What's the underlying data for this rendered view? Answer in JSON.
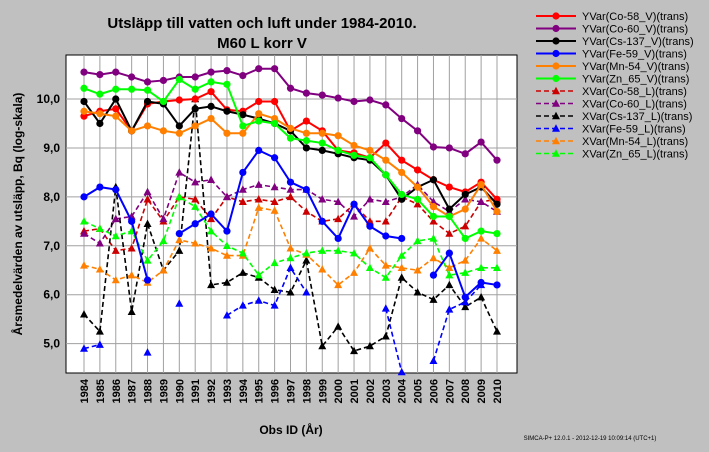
{
  "chart_data": {
    "type": "line",
    "title": "Utsläpp till vatten och luft under 1984-2010.",
    "subtitle": "M60  L korr V",
    "xlabel": "Obs ID (År)",
    "ylabel": "Årsmedelvärden av utsläpp, Bq (log-skala)",
    "ylim": [
      4.4,
      10.9
    ],
    "yticks": [
      "5,0",
      "6,0",
      "7,0",
      "8,0",
      "9,0",
      "10,0"
    ],
    "ytick_values": [
      5,
      6,
      7,
      8,
      9,
      10
    ],
    "x": [
      "1984",
      "1985",
      "1986",
      "1987",
      "1988",
      "1989",
      "1990",
      "1991",
      "1992",
      "1993",
      "1994",
      "1995",
      "1996",
      "1997",
      "1998",
      "1999",
      "2000",
      "2001",
      "2002",
      "2003",
      "2004",
      "2005",
      "2006",
      "2007",
      "2008",
      "2009",
      "2010"
    ],
    "grid": true,
    "legend_position": "right",
    "series": [
      {
        "name": "YVar(Co-58_V)(trans)",
        "color": "#ff0000",
        "style": "solid",
        "marker": "circle",
        "values": [
          9.65,
          9.75,
          9.8,
          9.35,
          9.9,
          9.95,
          9.98,
          10.0,
          10.15,
          9.78,
          9.75,
          9.95,
          9.95,
          9.35,
          9.55,
          9.35,
          8.95,
          8.9,
          8.8,
          9.1,
          8.75,
          8.55,
          8.35,
          8.2,
          8.1,
          8.3,
          7.95
        ]
      },
      {
        "name": "YVar(Co-60_V)(trans)",
        "color": "#800080",
        "style": "solid",
        "marker": "circle",
        "values": [
          10.55,
          10.5,
          10.55,
          10.45,
          10.35,
          10.38,
          10.45,
          10.45,
          10.55,
          10.58,
          10.48,
          10.62,
          10.62,
          10.22,
          10.12,
          10.08,
          10.02,
          9.95,
          9.98,
          9.88,
          9.6,
          9.35,
          9.02,
          9.0,
          8.88,
          9.12,
          8.75
        ]
      },
      {
        "name": "YVar(Cs-137_V)(trans)",
        "color": "#000000",
        "style": "solid",
        "marker": "circle",
        "values": [
          9.95,
          9.5,
          10.0,
          9.35,
          9.95,
          9.9,
          9.45,
          9.8,
          9.85,
          9.75,
          9.68,
          9.6,
          9.5,
          9.35,
          9.0,
          8.95,
          8.88,
          8.8,
          8.75,
          8.45,
          7.95,
          8.2,
          8.35,
          7.75,
          8.05,
          8.2,
          7.85
        ]
      },
      {
        "name": "YVar(Fe-59_V)(trans)",
        "color": "#0000ff",
        "style": "solid",
        "marker": "circle",
        "values": [
          8.0,
          8.2,
          8.15,
          7.5,
          6.3,
          null,
          7.25,
          7.45,
          7.65,
          7.3,
          8.5,
          8.95,
          8.8,
          8.3,
          8.15,
          7.5,
          7.15,
          7.85,
          7.4,
          7.2,
          7.15,
          null,
          6.4,
          6.85,
          5.95,
          6.25,
          6.2
        ]
      },
      {
        "name": "YVar(Mn-54_V)(trans)",
        "color": "#ff8000",
        "style": "solid",
        "marker": "circle",
        "values": [
          9.75,
          9.7,
          9.65,
          9.35,
          9.45,
          9.35,
          9.3,
          9.45,
          9.6,
          9.3,
          9.3,
          9.7,
          9.6,
          9.4,
          9.3,
          9.3,
          9.25,
          9.05,
          8.95,
          8.75,
          8.5,
          8.2,
          7.8,
          7.6,
          7.75,
          8.25,
          7.7
        ]
      },
      {
        "name": "YVar(Zn_65_V)(trans)",
        "color": "#00ff00",
        "style": "solid",
        "marker": "circle",
        "values": [
          10.22,
          10.1,
          10.2,
          10.2,
          10.18,
          9.95,
          10.4,
          10.2,
          10.35,
          10.3,
          9.45,
          9.55,
          9.5,
          9.2,
          9.15,
          9.1,
          8.95,
          8.85,
          8.8,
          8.45,
          8.05,
          7.95,
          7.6,
          7.6,
          7.15,
          7.3,
          7.25
        ]
      },
      {
        "name": "XVar(Co-58_L)(trans)",
        "color": "#cc0000",
        "style": "dashed",
        "marker": "triangle",
        "values": [
          7.3,
          7.35,
          6.9,
          6.95,
          7.95,
          7.5,
          8.0,
          7.95,
          7.55,
          8.0,
          7.9,
          7.95,
          7.9,
          8.0,
          7.7,
          7.5,
          7.55,
          7.85,
          7.5,
          7.5,
          8.0,
          7.85,
          7.5,
          7.25,
          7.4,
          7.9,
          7.95
        ]
      },
      {
        "name": "XVar(Co-60_L)(trans)",
        "color": "#800080",
        "style": "dashed",
        "marker": "triangle",
        "values": [
          7.25,
          7.05,
          7.55,
          7.6,
          8.1,
          7.55,
          8.5,
          8.3,
          8.35,
          8.0,
          8.15,
          8.25,
          8.2,
          8.15,
          8.15,
          7.95,
          7.9,
          7.6,
          7.95,
          7.9,
          8.0,
          8.25,
          7.9,
          7.7,
          7.95,
          7.9,
          7.7
        ]
      },
      {
        "name": "XVar(Cs-137_L)(trans)",
        "color": "#000000",
        "style": "dashed",
        "marker": "triangle",
        "values": [
          5.6,
          5.25,
          8.2,
          5.65,
          7.45,
          6.5,
          6.9,
          10.0,
          6.2,
          6.25,
          6.45,
          6.35,
          6.1,
          6.05,
          6.7,
          4.95,
          5.35,
          4.85,
          4.95,
          5.15,
          6.35,
          6.05,
          5.9,
          6.2,
          5.75,
          5.95,
          5.25
        ]
      },
      {
        "name": "XVar(Fe-59_L)(trans)",
        "color": "#0000ff",
        "style": "dashed",
        "marker": "triangle",
        "values": [
          4.9,
          4.98,
          null,
          null,
          4.82,
          null,
          5.82,
          null,
          null,
          5.58,
          5.78,
          5.88,
          5.78,
          6.55,
          6.05,
          null,
          null,
          null,
          null,
          5.72,
          4.42,
          null,
          4.65,
          5.7,
          5.85,
          6.2,
          null
        ]
      },
      {
        "name": "XVar(Mn-54_L)(trans)",
        "color": "#ff8000",
        "style": "dashed",
        "marker": "triangle",
        "values": [
          6.6,
          6.52,
          6.3,
          6.4,
          6.25,
          6.5,
          7.12,
          7.05,
          6.95,
          6.8,
          6.8,
          7.78,
          7.72,
          6.95,
          6.82,
          6.52,
          6.2,
          6.45,
          6.95,
          6.6,
          6.55,
          6.5,
          6.75,
          6.55,
          6.7,
          7.15,
          6.9
        ]
      },
      {
        "name": "XVar(Zn_65_L)(trans)",
        "color": "#00ff00",
        "style": "dashed",
        "marker": "triangle",
        "values": [
          7.5,
          7.35,
          7.2,
          7.3,
          6.7,
          7.1,
          8.0,
          7.8,
          7.3,
          7.0,
          6.85,
          6.4,
          6.65,
          6.75,
          6.85,
          6.9,
          6.9,
          6.85,
          6.55,
          6.35,
          6.8,
          7.1,
          7.15,
          6.4,
          6.45,
          6.55,
          6.55
        ]
      }
    ]
  },
  "footer": "SIMCA-P+ 12.0.1 - 2012-12-19 10:09:14 (UTC+1)"
}
